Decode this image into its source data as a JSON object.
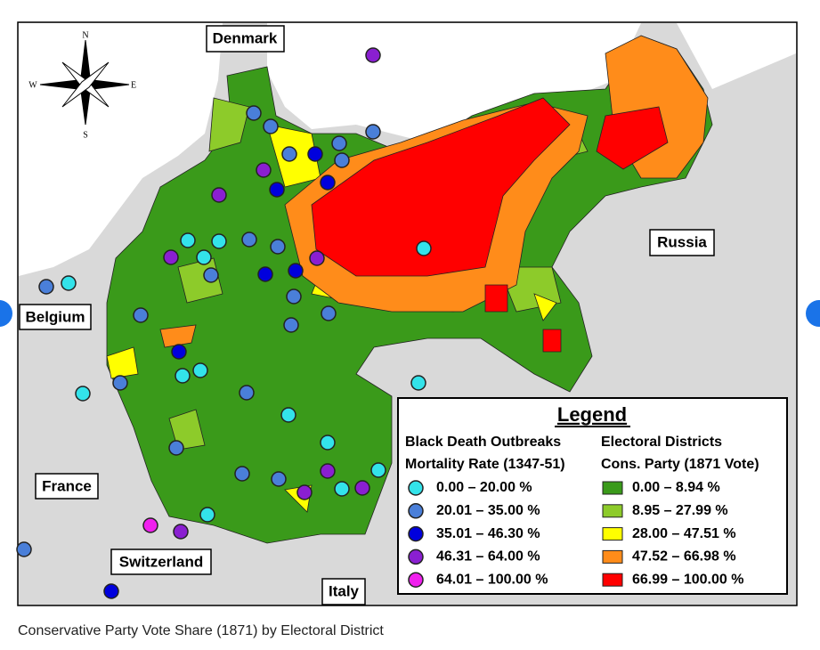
{
  "map": {
    "labels": [
      "Denmark",
      "Russia",
      "Belgium",
      "France",
      "Switzerland",
      "Italy"
    ],
    "compass": [
      "N",
      "S",
      "W",
      "E"
    ]
  },
  "legend": {
    "title": "Legend",
    "outbreaks": {
      "heading": "Black Death Outbreaks",
      "subheading": "Mortality Rate (1347-51)",
      "items": [
        {
          "label": "0.00 – 20.00 %",
          "color": "#33e3ea"
        },
        {
          "label": "20.01 – 35.00 %",
          "color": "#4a7fd9"
        },
        {
          "label": "35.01 – 46.30 %",
          "color": "#0000dd"
        },
        {
          "label": "46.31 – 64.00 %",
          "color": "#8a1fd1"
        },
        {
          "label": "64.01 – 100.00 %",
          "color": "#f020ee"
        }
      ]
    },
    "districts": {
      "heading": "Electoral Districts",
      "subheading": "Cons. Party (1871 Vote)",
      "items": [
        {
          "label": "0.00 – 8.94 %",
          "color": "#3a9a1a"
        },
        {
          "label": "8.95 – 27.99 %",
          "color": "#8dcb2a"
        },
        {
          "label": "28.00 – 47.51 %",
          "color": "#ffff00"
        },
        {
          "label": "47.52 – 66.98 %",
          "color": "#ff8c1a"
        },
        {
          "label": "66.99 – 100.00 %",
          "color": "#ff0000"
        }
      ]
    }
  },
  "caption": "Conservative Party Vote Share (1871) by Electoral District"
}
